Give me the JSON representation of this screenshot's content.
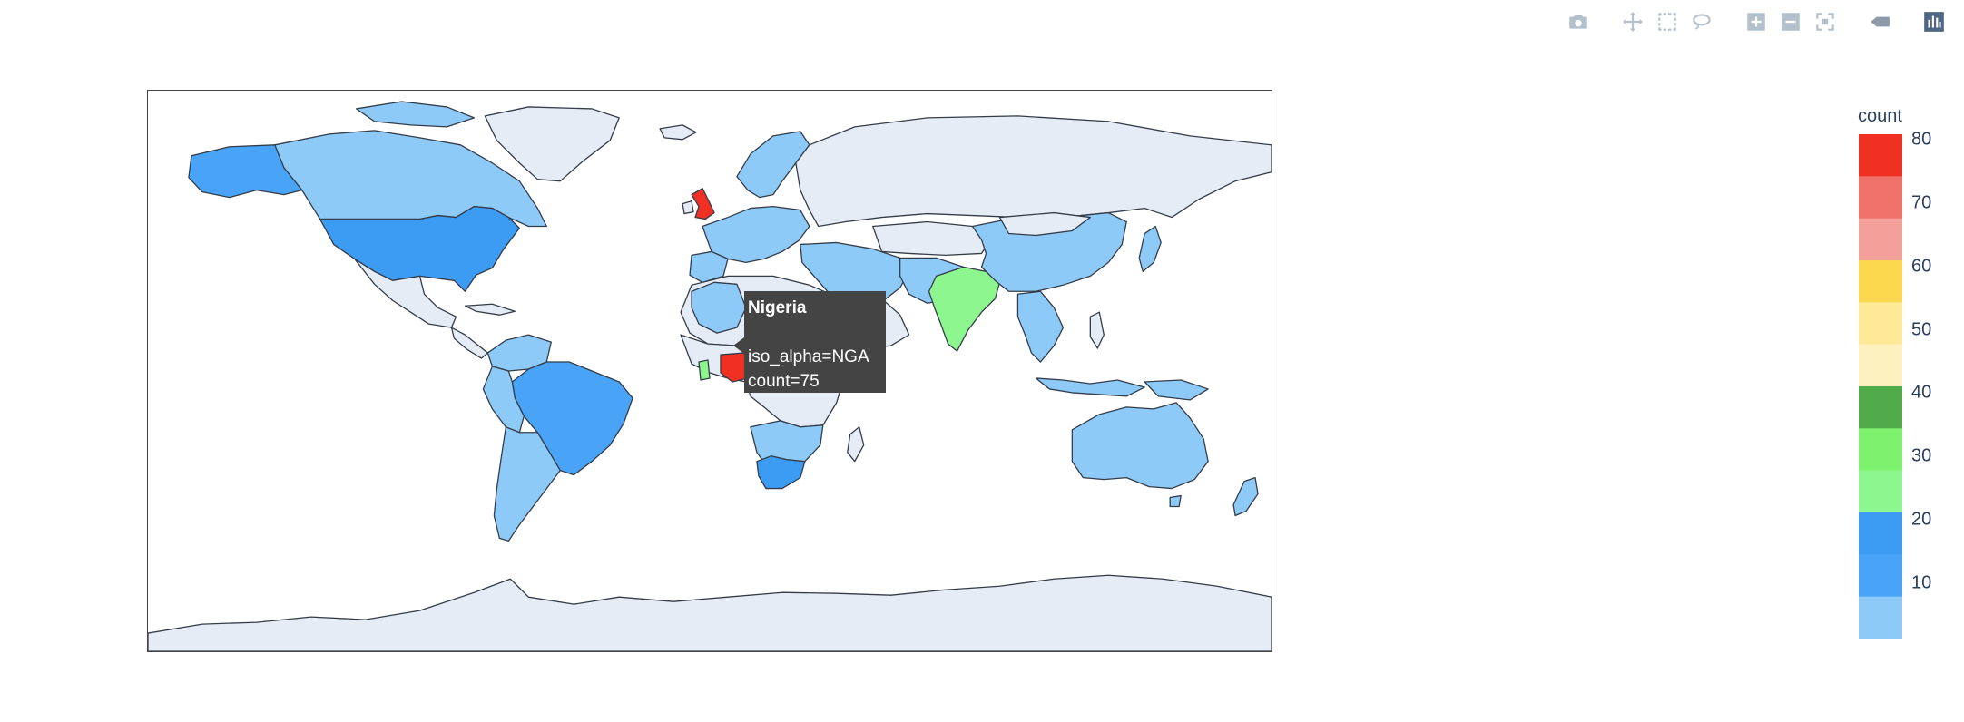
{
  "modebar": {
    "buttons": [
      {
        "name": "camera-icon",
        "group": 0
      },
      {
        "name": "pan-icon",
        "group": 1
      },
      {
        "name": "box-select-icon",
        "group": 1
      },
      {
        "name": "lasso-select-icon",
        "group": 1
      },
      {
        "name": "zoom-in-icon",
        "group": 2
      },
      {
        "name": "zoom-out-icon",
        "group": 2
      },
      {
        "name": "reset-view-icon",
        "group": 2
      },
      {
        "name": "hover-closest-icon",
        "group": 3
      },
      {
        "name": "plotly-logo-icon",
        "group": 4
      }
    ]
  },
  "tooltip": {
    "title": "Nigeria",
    "line1": "iso_alpha=NGA",
    "line2": "count=75"
  },
  "colorbar": {
    "title": "count",
    "ticks": [
      "80",
      "70",
      "60",
      "50",
      "40",
      "30",
      "20",
      "10"
    ],
    "tick_values": [
      80,
      70,
      60,
      50,
      40,
      30,
      20,
      10
    ],
    "range": [
      0,
      80
    ],
    "bands": [
      "#ef3022",
      "#ef7169",
      "#f3a09a",
      "#fbd84e",
      "#fde998",
      "#fdf1bf",
      "#52ab4b",
      "#7ef26e",
      "#8ef68e",
      "#3c9bf3",
      "#49a4f7",
      "#8ecaf8"
    ]
  },
  "chart_data": {
    "type": "choropleth",
    "color_key": "count",
    "locations": [
      {
        "name": "United Kingdom",
        "value": 80
      },
      {
        "name": "Nigeria",
        "iso_alpha": "NGA",
        "value": 75
      },
      {
        "name": "India",
        "value": 27
      },
      {
        "name": "Ghana",
        "value": 28
      },
      {
        "name": "United States",
        "value": 17
      },
      {
        "name": "South Africa",
        "value": 16
      },
      {
        "name": "Brazil",
        "value": 13
      },
      {
        "name": "Alaska (USA)",
        "value": 17
      },
      {
        "name": "Australia",
        "value": 4
      },
      {
        "name": "Canada",
        "value": 5
      }
    ],
    "colors": {
      "land_default": "#e5ecf6",
      "low": "#8ecaf8",
      "mid_blue": "#49a4f7",
      "blue": "#3c9bf3",
      "green": "#8ef68e",
      "red": "#ef3022",
      "ocean": "#ffffff"
    }
  }
}
